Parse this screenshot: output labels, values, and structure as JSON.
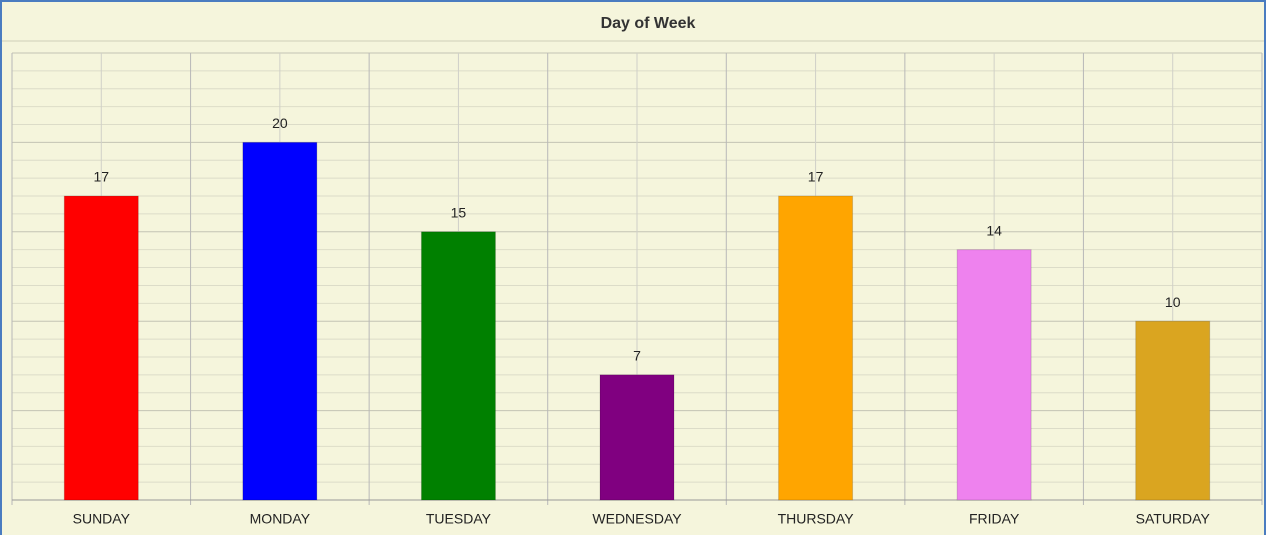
{
  "chart_data": {
    "type": "bar",
    "title": "Day of Week",
    "categories": [
      "SUNDAY",
      "MONDAY",
      "TUESDAY",
      "WEDNESDAY",
      "THURSDAY",
      "FRIDAY",
      "SATURDAY"
    ],
    "values": [
      17,
      20,
      15,
      7,
      17,
      14,
      10
    ],
    "colors": [
      "#ff0000",
      "#0000ff",
      "#008000",
      "#800080",
      "#ffa500",
      "#ee82ee",
      "#daa520"
    ],
    "ylim": [
      0,
      25
    ],
    "yticks": [
      0,
      5,
      10,
      15,
      20,
      25
    ],
    "grid": true
  }
}
